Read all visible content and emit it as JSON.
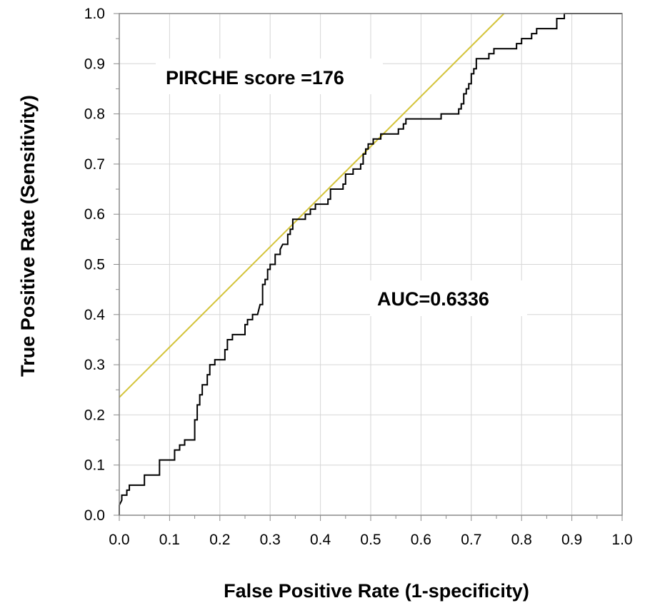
{
  "chart_data": {
    "type": "line",
    "title": "",
    "xlabel": "False Positive Rate (1-specificity)",
    "ylabel": "True Positive Rate (Sensitivity)",
    "xlim": [
      0,
      1
    ],
    "ylim": [
      0,
      1
    ],
    "grid": true,
    "x_ticks": [
      "0.0",
      "0.1",
      "0.2",
      "0.3",
      "0.4",
      "0.5",
      "0.6",
      "0.7",
      "0.8",
      "0.9",
      "1.0"
    ],
    "y_ticks": [
      "0.0",
      "0.1",
      "0.2",
      "0.3",
      "0.4",
      "0.5",
      "0.6",
      "0.7",
      "0.8",
      "0.9",
      "1.0"
    ],
    "annotations": {
      "cutoff": "PIRCHE score =176",
      "auc": "AUC=0.6336"
    },
    "colors": {
      "roc": "#000000",
      "tangent": "#d4c43a",
      "grid": "#d6d6d6",
      "frame": "#8a8a8a"
    },
    "series": [
      {
        "kind": "roc-curve",
        "points": [
          [
            0.0,
            0.0
          ],
          [
            0.0,
            0.02
          ],
          [
            0.005,
            0.03
          ],
          [
            0.005,
            0.04
          ],
          [
            0.015,
            0.04
          ],
          [
            0.015,
            0.05
          ],
          [
            0.02,
            0.05
          ],
          [
            0.02,
            0.06
          ],
          [
            0.05,
            0.06
          ],
          [
            0.05,
            0.08
          ],
          [
            0.08,
            0.08
          ],
          [
            0.08,
            0.11
          ],
          [
            0.11,
            0.11
          ],
          [
            0.11,
            0.13
          ],
          [
            0.12,
            0.13
          ],
          [
            0.12,
            0.14
          ],
          [
            0.13,
            0.14
          ],
          [
            0.13,
            0.15
          ],
          [
            0.15,
            0.15
          ],
          [
            0.15,
            0.19
          ],
          [
            0.155,
            0.19
          ],
          [
            0.155,
            0.22
          ],
          [
            0.16,
            0.22
          ],
          [
            0.16,
            0.24
          ],
          [
            0.165,
            0.24
          ],
          [
            0.165,
            0.26
          ],
          [
            0.175,
            0.26
          ],
          [
            0.175,
            0.28
          ],
          [
            0.18,
            0.28
          ],
          [
            0.18,
            0.3
          ],
          [
            0.19,
            0.3
          ],
          [
            0.19,
            0.31
          ],
          [
            0.21,
            0.31
          ],
          [
            0.21,
            0.33
          ],
          [
            0.215,
            0.33
          ],
          [
            0.215,
            0.35
          ],
          [
            0.225,
            0.35
          ],
          [
            0.225,
            0.36
          ],
          [
            0.25,
            0.36
          ],
          [
            0.25,
            0.38
          ],
          [
            0.255,
            0.38
          ],
          [
            0.255,
            0.39
          ],
          [
            0.265,
            0.39
          ],
          [
            0.265,
            0.4
          ],
          [
            0.275,
            0.4
          ],
          [
            0.28,
            0.42
          ],
          [
            0.285,
            0.42
          ],
          [
            0.285,
            0.46
          ],
          [
            0.29,
            0.46
          ],
          [
            0.29,
            0.47
          ],
          [
            0.295,
            0.47
          ],
          [
            0.295,
            0.49
          ],
          [
            0.3,
            0.49
          ],
          [
            0.3,
            0.5
          ],
          [
            0.31,
            0.5
          ],
          [
            0.31,
            0.52
          ],
          [
            0.32,
            0.52
          ],
          [
            0.32,
            0.53
          ],
          [
            0.325,
            0.54
          ],
          [
            0.335,
            0.54
          ],
          [
            0.335,
            0.56
          ],
          [
            0.34,
            0.56
          ],
          [
            0.34,
            0.57
          ],
          [
            0.345,
            0.57
          ],
          [
            0.345,
            0.59
          ],
          [
            0.37,
            0.59
          ],
          [
            0.37,
            0.6
          ],
          [
            0.38,
            0.6
          ],
          [
            0.38,
            0.61
          ],
          [
            0.39,
            0.61
          ],
          [
            0.39,
            0.62
          ],
          [
            0.415,
            0.62
          ],
          [
            0.415,
            0.63
          ],
          [
            0.42,
            0.63
          ],
          [
            0.42,
            0.65
          ],
          [
            0.445,
            0.65
          ],
          [
            0.445,
            0.66
          ],
          [
            0.45,
            0.66
          ],
          [
            0.45,
            0.68
          ],
          [
            0.465,
            0.68
          ],
          [
            0.465,
            0.69
          ],
          [
            0.48,
            0.69
          ],
          [
            0.48,
            0.7
          ],
          [
            0.485,
            0.7
          ],
          [
            0.485,
            0.72
          ],
          [
            0.49,
            0.72
          ],
          [
            0.49,
            0.73
          ],
          [
            0.495,
            0.73
          ],
          [
            0.495,
            0.74
          ],
          [
            0.505,
            0.74
          ],
          [
            0.505,
            0.75
          ],
          [
            0.52,
            0.75
          ],
          [
            0.52,
            0.76
          ],
          [
            0.555,
            0.76
          ],
          [
            0.555,
            0.77
          ],
          [
            0.565,
            0.77
          ],
          [
            0.565,
            0.78
          ],
          [
            0.57,
            0.78
          ],
          [
            0.57,
            0.79
          ],
          [
            0.64,
            0.79
          ],
          [
            0.64,
            0.8
          ],
          [
            0.675,
            0.8
          ],
          [
            0.675,
            0.81
          ],
          [
            0.68,
            0.81
          ],
          [
            0.68,
            0.82
          ],
          [
            0.685,
            0.82
          ],
          [
            0.685,
            0.84
          ],
          [
            0.69,
            0.84
          ],
          [
            0.69,
            0.85
          ],
          [
            0.695,
            0.85
          ],
          [
            0.695,
            0.86
          ],
          [
            0.7,
            0.86
          ],
          [
            0.7,
            0.88
          ],
          [
            0.705,
            0.88
          ],
          [
            0.705,
            0.89
          ],
          [
            0.71,
            0.89
          ],
          [
            0.71,
            0.91
          ],
          [
            0.735,
            0.91
          ],
          [
            0.735,
            0.92
          ],
          [
            0.745,
            0.92
          ],
          [
            0.745,
            0.93
          ],
          [
            0.79,
            0.93
          ],
          [
            0.79,
            0.94
          ],
          [
            0.8,
            0.94
          ],
          [
            0.8,
            0.95
          ],
          [
            0.82,
            0.95
          ],
          [
            0.82,
            0.96
          ],
          [
            0.83,
            0.96
          ],
          [
            0.83,
            0.97
          ],
          [
            0.87,
            0.97
          ],
          [
            0.87,
            0.99
          ],
          [
            0.885,
            0.99
          ],
          [
            0.885,
            1.0
          ],
          [
            1.0,
            1.0
          ]
        ]
      },
      {
        "kind": "tangent-line",
        "points": [
          [
            0.0,
            0.235
          ],
          [
            0.765,
            1.0
          ]
        ]
      }
    ]
  }
}
